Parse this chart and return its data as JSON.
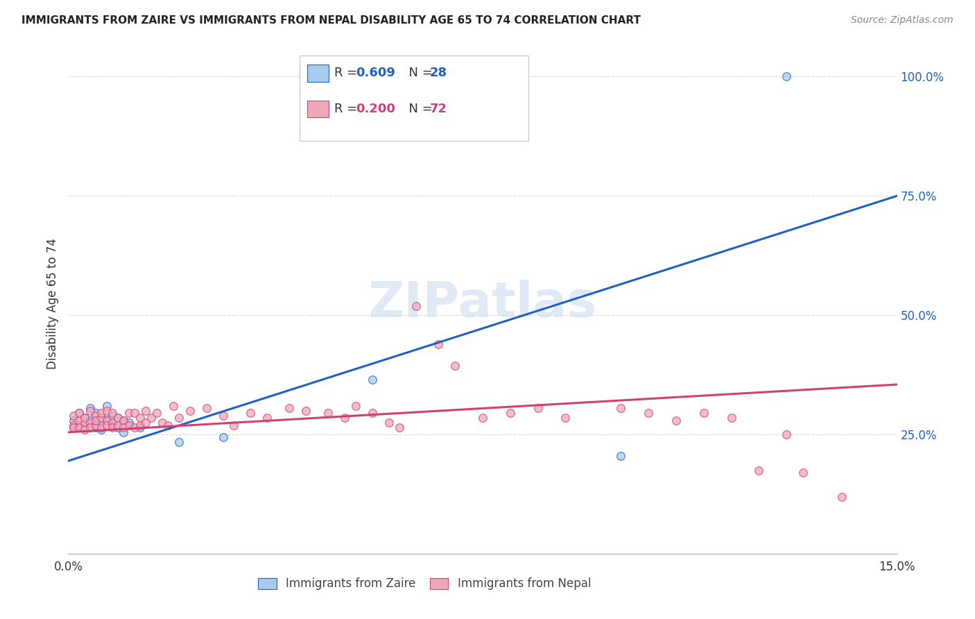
{
  "title": "IMMIGRANTS FROM ZAIRE VS IMMIGRANTS FROM NEPAL DISABILITY AGE 65 TO 74 CORRELATION CHART",
  "source": "Source: ZipAtlas.com",
  "ylabel": "Disability Age 65 to 74",
  "xlim": [
    0.0,
    0.15
  ],
  "ylim": [
    0.0,
    1.05
  ],
  "ytick_labels_right": [
    "25.0%",
    "50.0%",
    "75.0%",
    "100.0%"
  ],
  "ytick_positions_right": [
    0.25,
    0.5,
    0.75,
    1.0
  ],
  "grid_color": "#d8d8d8",
  "background_color": "#ffffff",
  "zaire_color": "#a8ccf0",
  "nepal_color": "#f0a8b8",
  "zaire_line_color": "#2060c0",
  "nepal_line_color": "#d04070",
  "zaire_line_x0": 0.0,
  "zaire_line_y0": 0.195,
  "zaire_line_x1": 0.15,
  "zaire_line_y1": 0.75,
  "nepal_line_x0": 0.0,
  "nepal_line_y0": 0.255,
  "nepal_line_x1": 0.15,
  "nepal_line_y1": 0.355,
  "zaire_x": [
    0.001,
    0.001,
    0.002,
    0.002,
    0.003,
    0.003,
    0.004,
    0.004,
    0.005,
    0.005,
    0.005,
    0.006,
    0.006,
    0.007,
    0.007,
    0.008,
    0.008,
    0.009,
    0.009,
    0.01,
    0.01,
    0.011,
    0.013,
    0.02,
    0.028,
    0.055,
    0.1,
    0.13
  ],
  "zaire_y": [
    0.28,
    0.265,
    0.295,
    0.27,
    0.285,
    0.265,
    0.28,
    0.305,
    0.27,
    0.295,
    0.265,
    0.285,
    0.26,
    0.28,
    0.31,
    0.27,
    0.29,
    0.285,
    0.265,
    0.28,
    0.255,
    0.275,
    0.265,
    0.235,
    0.245,
    0.365,
    0.205,
    1.0
  ],
  "nepal_x": [
    0.001,
    0.001,
    0.001,
    0.002,
    0.002,
    0.002,
    0.003,
    0.003,
    0.003,
    0.004,
    0.004,
    0.004,
    0.005,
    0.005,
    0.005,
    0.006,
    0.006,
    0.006,
    0.007,
    0.007,
    0.007,
    0.008,
    0.008,
    0.008,
    0.009,
    0.009,
    0.01,
    0.01,
    0.011,
    0.011,
    0.012,
    0.012,
    0.013,
    0.013,
    0.014,
    0.014,
    0.015,
    0.016,
    0.017,
    0.018,
    0.019,
    0.02,
    0.022,
    0.025,
    0.028,
    0.03,
    0.033,
    0.036,
    0.04,
    0.043,
    0.047,
    0.05,
    0.052,
    0.055,
    0.058,
    0.06,
    0.063,
    0.067,
    0.07,
    0.075,
    0.08,
    0.085,
    0.09,
    0.1,
    0.105,
    0.11,
    0.115,
    0.12,
    0.125,
    0.13,
    0.133,
    0.14
  ],
  "nepal_y": [
    0.27,
    0.29,
    0.265,
    0.28,
    0.265,
    0.295,
    0.275,
    0.26,
    0.285,
    0.275,
    0.3,
    0.265,
    0.29,
    0.27,
    0.28,
    0.285,
    0.265,
    0.295,
    0.28,
    0.27,
    0.3,
    0.275,
    0.295,
    0.265,
    0.285,
    0.27,
    0.28,
    0.265,
    0.295,
    0.27,
    0.295,
    0.265,
    0.285,
    0.27,
    0.275,
    0.3,
    0.285,
    0.295,
    0.275,
    0.27,
    0.31,
    0.285,
    0.3,
    0.305,
    0.29,
    0.27,
    0.295,
    0.285,
    0.305,
    0.3,
    0.295,
    0.285,
    0.31,
    0.295,
    0.275,
    0.265,
    0.52,
    0.44,
    0.395,
    0.285,
    0.295,
    0.305,
    0.285,
    0.305,
    0.295,
    0.28,
    0.295,
    0.285,
    0.175,
    0.25,
    0.17,
    0.12
  ]
}
